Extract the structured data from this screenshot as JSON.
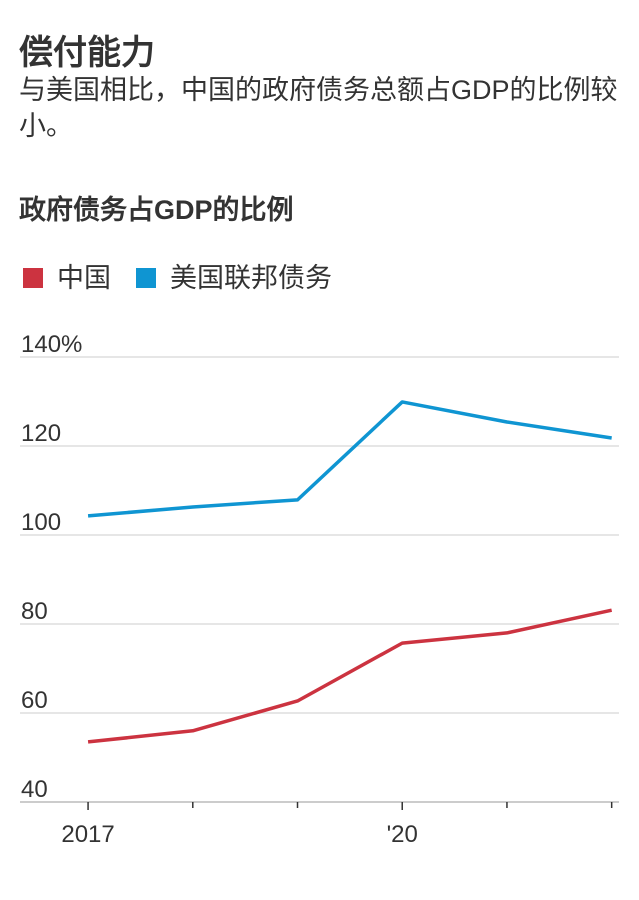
{
  "chart_data": {
    "type": "line",
    "title": "偿付能力",
    "subtitle": "与美国相比，中国的政府债务总额占GDP的比例较小。",
    "chart_title": "政府债务占GDP的比例",
    "x": [
      2017,
      2018,
      2019,
      2020,
      2021,
      2022
    ],
    "series": [
      {
        "name": "中国",
        "color": "#cc3340",
        "values": [
          53.5,
          56,
          62.7,
          75.7,
          78,
          83.1
        ]
      },
      {
        "name": "美国联邦债务",
        "color": "#0f95d2",
        "values": [
          104.3,
          106.3,
          107.9,
          129.9,
          125.4,
          121.8
        ]
      }
    ],
    "xlim": [
      2016.35,
      2022.07
    ],
    "xticks": [
      2017,
      {
        "value": 2020,
        "label": "'20"
      }
    ],
    "x_minor_ticks": [
      2018,
      2019,
      2021,
      2022
    ],
    "ylim": [
      40,
      140
    ],
    "yticks": [
      40,
      60,
      80,
      100,
      120,
      {
        "value": 140,
        "label": "140%"
      }
    ],
    "grid": true
  }
}
